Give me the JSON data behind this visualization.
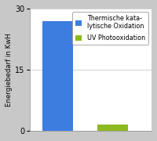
{
  "values": [
    27,
    1.5
  ],
  "bar_colors": [
    "#3d7de0",
    "#8db820"
  ],
  "bar_positions": [
    0.5,
    1.5
  ],
  "bar_width": 0.55,
  "ylim": [
    0,
    30
  ],
  "yticks": [
    0,
    15,
    30
  ],
  "ylabel": "Energiebedarf in KwH",
  "ylabel_fontsize": 6.2,
  "background_color": "#c8c8c8",
  "plot_bg_color": "#ffffff",
  "legend_labels": [
    "Thermische kata-\nlytische Oxidation",
    "UV Photooxidation"
  ],
  "legend_colors": [
    "#3d7de0",
    "#8db820"
  ],
  "tick_fontsize": 7,
  "grid_color": "#cccccc",
  "xlim": [
    0.0,
    2.2
  ]
}
